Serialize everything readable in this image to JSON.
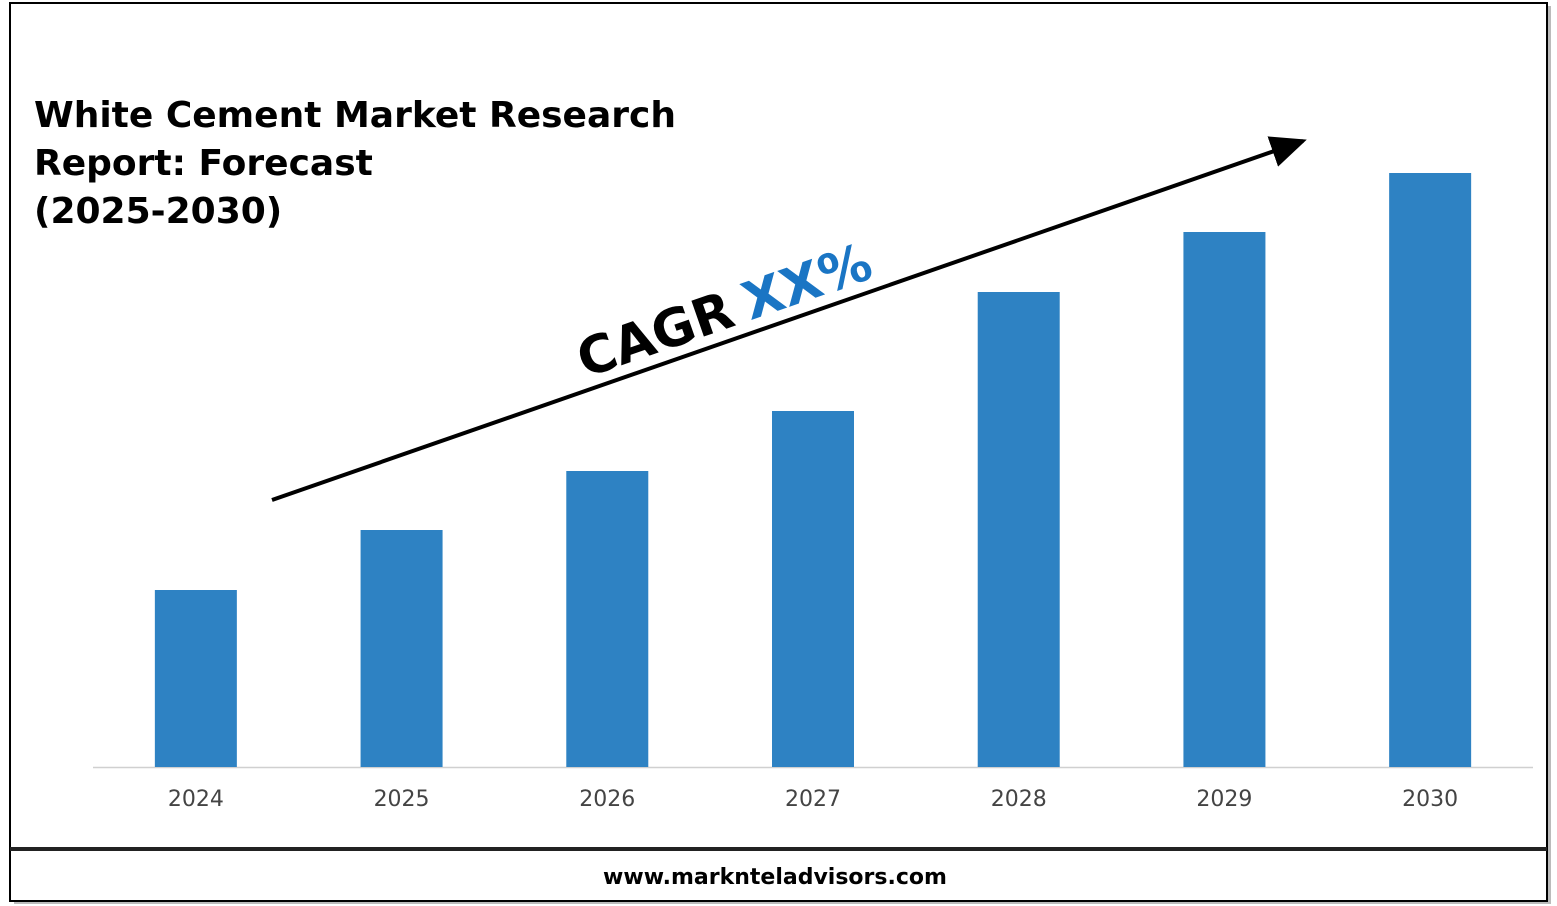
{
  "chart_data": {
    "type": "bar",
    "title": [
      "White Cement Market Research",
      "Report: Forecast",
      "(2025-2030)"
    ],
    "annotation": {
      "text": "CAGR",
      "highlight": "XX%",
      "highlight_color": "#1a75c4"
    },
    "categories": [
      "2024",
      "2025",
      "2026",
      "2027",
      "2028",
      "2029",
      "2030"
    ],
    "values": [
      177,
      237,
      296,
      356,
      475,
      535,
      594
    ],
    "color": "#2e82c3",
    "source": "www.marknteladvisors.com"
  }
}
